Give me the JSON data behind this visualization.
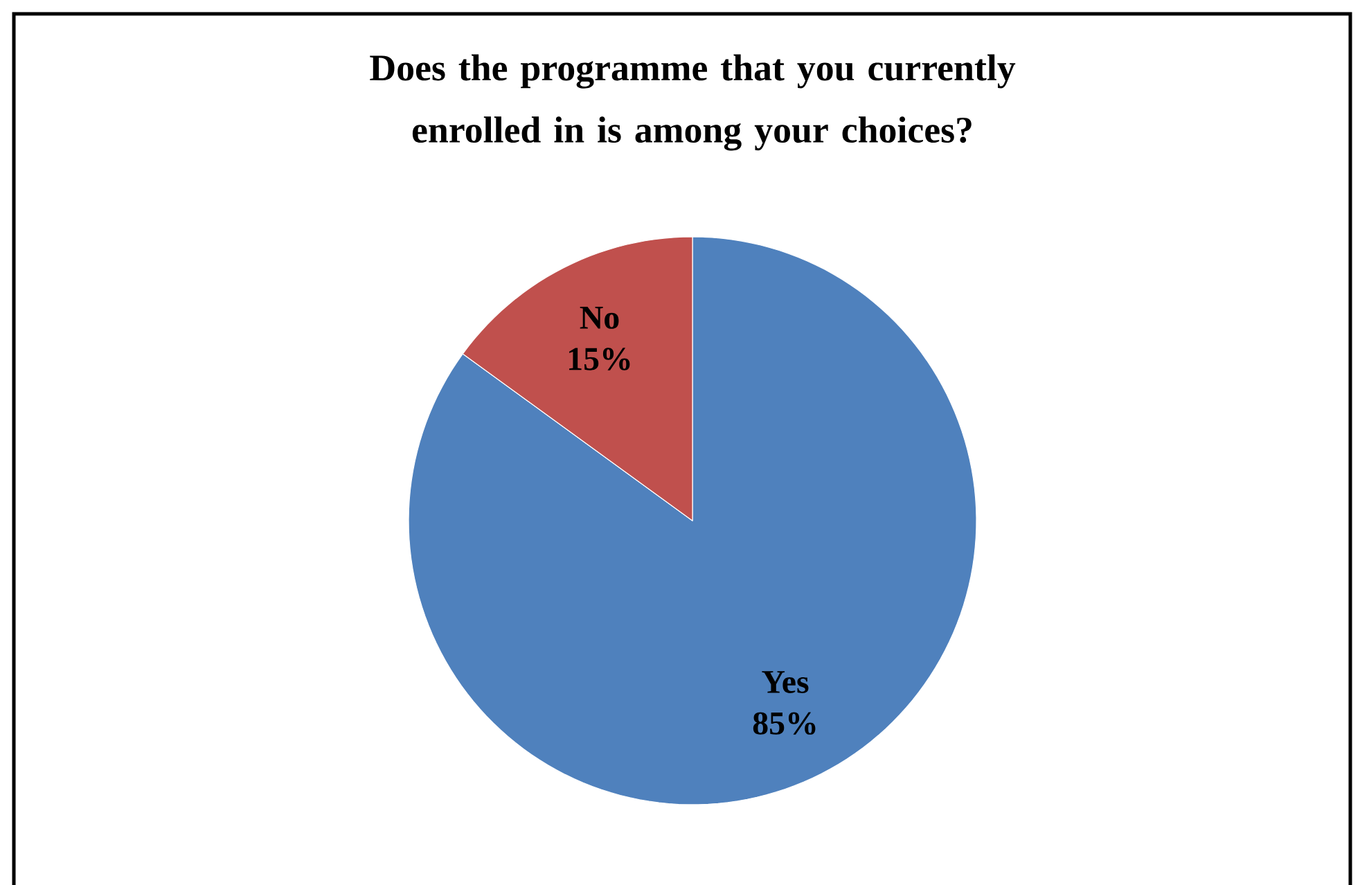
{
  "chart_data": {
    "type": "pie",
    "title": "Does the programme that you currently enrolled in is among your choices?",
    "categories": [
      "Yes",
      "No"
    ],
    "values": [
      85,
      15
    ],
    "value_labels": [
      "85%",
      "15%"
    ],
    "colors": [
      "#4f81bd",
      "#c0504d"
    ]
  }
}
